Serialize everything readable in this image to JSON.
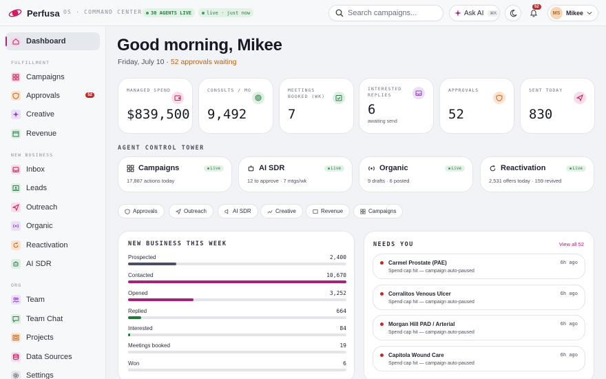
{
  "app": {
    "name": "Perfusa",
    "os_label": "OS · COMMAND CENTER",
    "agents_live": "30 AGENTS LIVE",
    "live_status": "live · just now"
  },
  "search": {
    "placeholder": "Search campaigns..."
  },
  "ask_ai": {
    "label": "Ask AI",
    "shortcut": "⌘K"
  },
  "notifications": {
    "count": "52"
  },
  "user": {
    "initials": "MS",
    "name": "Mikee"
  },
  "sidebar": {
    "dashboard": "Dashboard",
    "fulfillment_label": "FULFILLMENT",
    "campaigns": "Campaigns",
    "approvals": "Approvals",
    "approvals_badge": "52",
    "creative": "Creative",
    "revenue": "Revenue",
    "new_business_label": "NEW BUSINESS",
    "inbox": "Inbox",
    "leads": "Leads",
    "outreach": "Outreach",
    "organic": "Organic",
    "reactivation": "Reactivation",
    "ai_sdr": "AI SDR",
    "org_label": "ORG",
    "team": "Team",
    "team_chat": "Team Chat",
    "projects": "Projects",
    "data_sources": "Data Sources",
    "settings": "Settings"
  },
  "header": {
    "greeting": "Good morning, Mikee",
    "date": "Friday, July 10",
    "separator": "·",
    "approvals_waiting": "52 approvals waiting"
  },
  "stats": [
    {
      "label": "MANAGED SPEND",
      "value": "$839,500",
      "sub": ""
    },
    {
      "label": "CONSULTS / MO",
      "value": "9,492",
      "sub": ""
    },
    {
      "label": "MEETINGS BOOKED (WK)",
      "value": "7",
      "sub": ""
    },
    {
      "label": "INTERESTED REPLIES",
      "value": "6",
      "sub": "awaiting send"
    },
    {
      "label": "APPROVALS",
      "value": "52",
      "sub": ""
    },
    {
      "label": "SENT TODAY",
      "value": "830",
      "sub": ""
    }
  ],
  "tower": {
    "label": "AGENT CONTROL TOWER",
    "live_label": "Live",
    "agents": [
      {
        "name": "Campaigns",
        "sub": "17,887 actions today"
      },
      {
        "name": "AI SDR",
        "sub": "12 to approve · 7 mtgs/wk"
      },
      {
        "name": "Organic",
        "sub": "9 drafts · 6 posted"
      },
      {
        "name": "Reactivation",
        "sub": "2,531 offers today · 159 revived"
      }
    ]
  },
  "chips": [
    "Approvals",
    "Outreach",
    "AI SDR",
    "Creative",
    "Revenue",
    "Campaigns"
  ],
  "funnel": {
    "title": "NEW BUSINESS THIS WEEK",
    "rows": [
      {
        "name": "Prospected",
        "value": "2,400",
        "fraction": 0.22,
        "color": "#4a4f66"
      },
      {
        "name": "Contacted",
        "value": "10,670",
        "fraction": 1.0,
        "color": "#a8207a"
      },
      {
        "name": "Opened",
        "value": "3,252",
        "fraction": 0.3,
        "color": "#a8207a"
      },
      {
        "name": "Replied",
        "value": "664",
        "fraction": 0.06,
        "color": "#1f7a3a"
      },
      {
        "name": "Interested",
        "value": "84",
        "fraction": 0.008,
        "color": "#1f7a3a"
      },
      {
        "name": "Meetings booked",
        "value": "19",
        "fraction": 0.0,
        "color": "#1f7a3a"
      },
      {
        "name": "Won",
        "value": "6",
        "fraction": 0.0,
        "color": "#1f7a3a"
      }
    ]
  },
  "needs": {
    "title": "NEEDS YOU",
    "view_all": "View all 52",
    "items": [
      {
        "title": "Carmel Prostate (PAE)",
        "sub": "Spend cap hit — campaign auto-paused",
        "time": "6h ago"
      },
      {
        "title": "Corralitos Venous Ulcer",
        "sub": "Spend cap hit — campaign auto-paused",
        "time": "6h ago"
      },
      {
        "title": "Morgan Hill PAD / Arterial",
        "sub": "Spend cap hit — campaign auto-paused",
        "time": "6h ago"
      },
      {
        "title": "Capitola Wound Care",
        "sub": "Spend cap hit — campaign auto-paused",
        "time": "6h ago"
      }
    ]
  }
}
